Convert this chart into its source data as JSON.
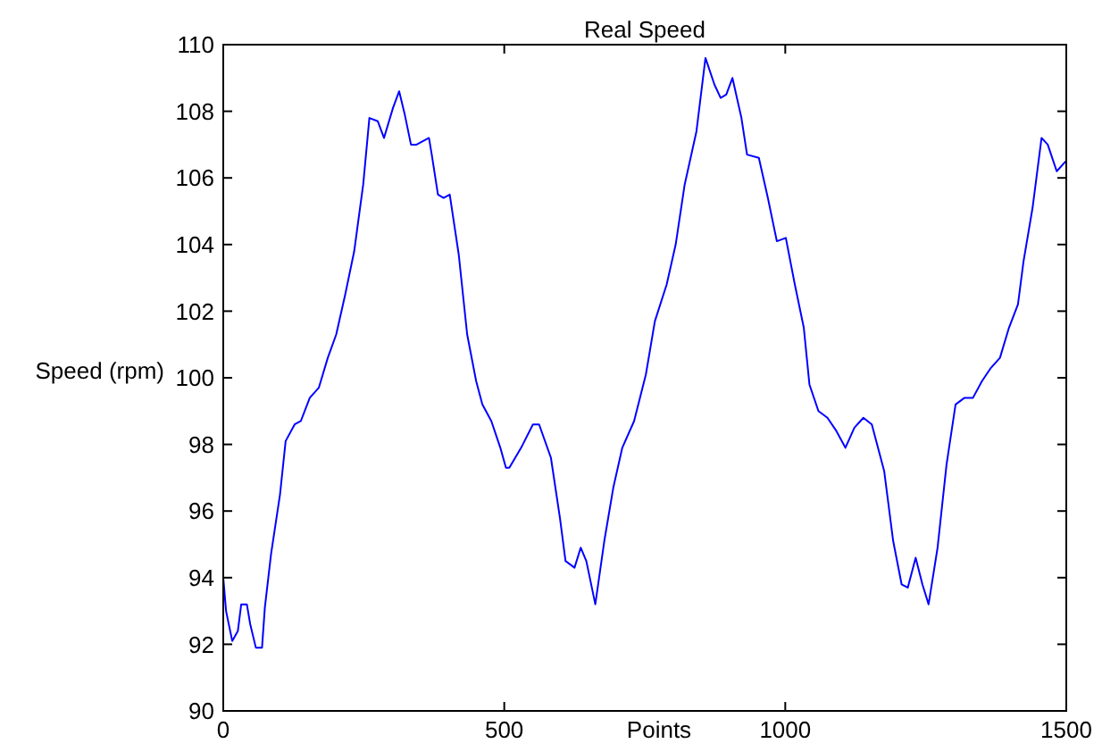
{
  "chart_data": {
    "type": "line",
    "title": "Real Speed",
    "xlabel": "Points",
    "ylabel": "Speed (rpm)",
    "xlim": [
      0,
      1500
    ],
    "ylim": [
      90,
      110
    ],
    "xticks": [
      0,
      500,
      1000,
      1500
    ],
    "yticks": [
      90,
      92,
      94,
      96,
      98,
      100,
      102,
      104,
      106,
      108,
      110
    ],
    "grid": false,
    "marker": "none",
    "line_style": "solid",
    "series": [
      {
        "color": "#0000ff",
        "x": [
          0,
          5,
          16,
          26,
          32,
          42,
          48,
          58,
          69,
          74,
          85,
          101,
          111,
          127,
          138,
          154,
          170,
          186,
          201,
          217,
          233,
          249,
          260,
          275,
          286,
          302,
          313,
          323,
          334,
          344,
          366,
          371,
          382,
          392,
          403,
          419,
          434,
          450,
          461,
          477,
          493,
          503,
          509,
          530,
          551,
          562,
          583,
          599,
          609,
          625,
          636,
          646,
          662,
          678,
          694,
          710,
          731,
          752,
          768,
          789,
          805,
          821,
          842,
          858,
          874,
          885,
          895,
          906,
          922,
          932,
          953,
          969,
          985,
          1001,
          1017,
          1033,
          1043,
          1059,
          1075,
          1091,
          1107,
          1123,
          1139,
          1154,
          1176,
          1192,
          1207,
          1218,
          1232,
          1244,
          1255,
          1271,
          1287,
          1303,
          1319,
          1334,
          1350,
          1366,
          1382,
          1398,
          1414,
          1424,
          1440,
          1456,
          1467,
          1483,
          1499
        ],
        "values": [
          94.0,
          93.0,
          92.1,
          92.4,
          93.2,
          93.2,
          92.6,
          91.9,
          91.9,
          93.1,
          94.7,
          96.5,
          98.1,
          98.6,
          98.7,
          99.4,
          99.7,
          100.6,
          101.3,
          102.5,
          103.8,
          105.8,
          107.8,
          107.7,
          107.2,
          108.1,
          108.6,
          107.9,
          107.0,
          107.0,
          107.2,
          106.7,
          105.5,
          105.4,
          105.5,
          103.7,
          101.3,
          99.9,
          99.2,
          98.7,
          97.9,
          97.3,
          97.3,
          97.9,
          98.6,
          98.6,
          97.6,
          95.8,
          94.5,
          94.3,
          94.9,
          94.5,
          93.2,
          95.1,
          96.7,
          97.9,
          98.7,
          100.1,
          101.7,
          102.8,
          104.0,
          105.8,
          107.4,
          109.6,
          108.8,
          108.4,
          108.5,
          109.0,
          107.8,
          106.7,
          106.6,
          105.4,
          104.1,
          104.2,
          102.8,
          101.5,
          99.8,
          99.0,
          98.8,
          98.4,
          97.9,
          98.5,
          98.8,
          98.6,
          97.2,
          95.1,
          93.8,
          93.7,
          94.6,
          93.8,
          93.2,
          94.9,
          97.4,
          99.2,
          99.4,
          99.4,
          99.9,
          100.3,
          100.6,
          101.5,
          102.2,
          103.5,
          105.1,
          107.2,
          107.0,
          106.2,
          106.5
        ]
      }
    ]
  }
}
